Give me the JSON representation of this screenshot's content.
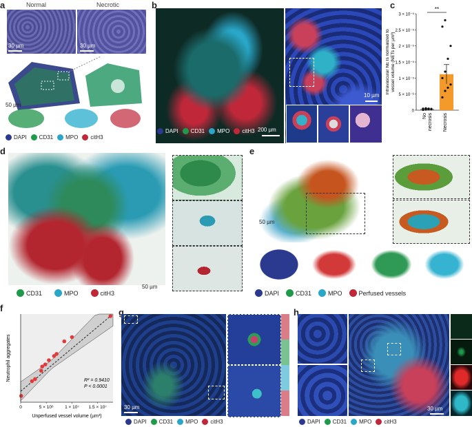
{
  "panels": {
    "a": {
      "label": "a",
      "header_left": "Normal",
      "header_right": "Necrotic",
      "scale_top": "30 µm",
      "scale_top2": "30 µm",
      "scale_3d": "50 µm",
      "legend": [
        {
          "name": "DAPI",
          "color": "#2b3a8f"
        },
        {
          "name": "CD31",
          "color": "#1f9a4a"
        },
        {
          "name": "MPO",
          "color": "#29a6c8"
        },
        {
          "name": "citH3",
          "color": "#c0283a"
        }
      ]
    },
    "b": {
      "label": "b",
      "scale_main": "200 µm",
      "scale_inset": "10 µm",
      "legend": [
        {
          "name": "DAPI",
          "color": "#2b3a8f"
        },
        {
          "name": "CD31",
          "color": "#1f9a4a"
        },
        {
          "name": "MPO",
          "color": "#29a6c8"
        },
        {
          "name": "citH3",
          "color": "#c0283a"
        }
      ]
    },
    "c": {
      "label": "c"
    },
    "d": {
      "label": "d",
      "scale": "50 µm",
      "legend": [
        {
          "name": "CD31",
          "color": "#1f9a4a"
        },
        {
          "name": "MPO",
          "color": "#29a6c8"
        },
        {
          "name": "citH3",
          "color": "#c0283a"
        }
      ]
    },
    "e": {
      "label": "e",
      "scale": "50 µm",
      "legend": [
        {
          "name": "DAPI",
          "color": "#2b3a8f"
        },
        {
          "name": "CD31",
          "color": "#1f9a4a"
        },
        {
          "name": "MPO",
          "color": "#29a6c8"
        },
        {
          "name": "Perfused vessels",
          "color": "#c0283a"
        }
      ]
    },
    "f": {
      "label": "f",
      "r2_text": "R² = 0.9410",
      "p_text": "P < 0.0001"
    },
    "g": {
      "label": "g",
      "scale": "30 µm",
      "legend": [
        {
          "name": "DAPI",
          "color": "#2b3a8f"
        },
        {
          "name": "CD31",
          "color": "#1f9a4a"
        },
        {
          "name": "MPO",
          "color": "#29a6c8"
        },
        {
          "name": "citH3",
          "color": "#c0283a"
        }
      ]
    },
    "h": {
      "label": "h",
      "scale": "30 µm",
      "legend": [
        {
          "name": "DAPI",
          "color": "#2b3a8f"
        },
        {
          "name": "CD31",
          "color": "#1f9a4a"
        },
        {
          "name": "MPO",
          "color": "#29a6c8"
        },
        {
          "name": "citH3",
          "color": "#c0283a"
        }
      ]
    }
  },
  "chart_data": [
    {
      "panel": "c",
      "type": "bar",
      "categories": [
        "No necrosis",
        "Necrosis"
      ],
      "values": [
        4e-07,
        1.12e-05
      ],
      "error": [
        1e-07,
        3e-06
      ],
      "points": [
        [
          1e-07,
          2e-07,
          3e-07,
          4e-07,
          5e-07,
          6e-07,
          5e-07,
          3e-07
        ],
        [
          4e-06,
          6e-06,
          7e-06,
          8e-06,
          1e-05,
          1.2e-05,
          1.6e-05,
          2e-05,
          2.6e-05,
          2.8e-05
        ]
      ],
      "ylabel": "Intravascular NETs normalized to vessel volume (NETs per µm³)",
      "ylim": [
        0,
        3e-05
      ],
      "yticks": [
        "0",
        "5 × 10⁻⁶",
        "1 × 10⁻⁵",
        "1.5 × 10⁻⁵",
        "2 × 10⁻⁵",
        "2.5 × 10⁻⁵",
        "3 × 10⁻⁵"
      ],
      "significance": "**",
      "colors": {
        "no_necrosis": "#8a8a8a",
        "necrosis": "#f39a2b"
      }
    },
    {
      "panel": "f",
      "type": "scatter",
      "x": [
        100000.0,
        2200000.0,
        2800000.0,
        4000000.0,
        4200000.0,
        4800000.0,
        5500000.0,
        6500000.0,
        7000000.0,
        8500000.0,
        10000000.0,
        17500000.0
      ],
      "y": [
        3,
        10,
        11,
        15,
        17,
        18,
        20,
        22,
        23,
        29,
        31,
        41
      ],
      "xlabel": "Unperfused vessel volume (µm³)",
      "ylabel": "Neutrophil aggregates",
      "xlim": [
        0,
        18000000.0
      ],
      "ylim": [
        0,
        42
      ],
      "xticks": [
        "0",
        "5 × 10⁶",
        "1 × 10⁷",
        "1.5 × 10⁷"
      ],
      "fit": {
        "slope": 2.12e-06,
        "intercept": 5.2
      },
      "color": "#e23a3a"
    }
  ]
}
